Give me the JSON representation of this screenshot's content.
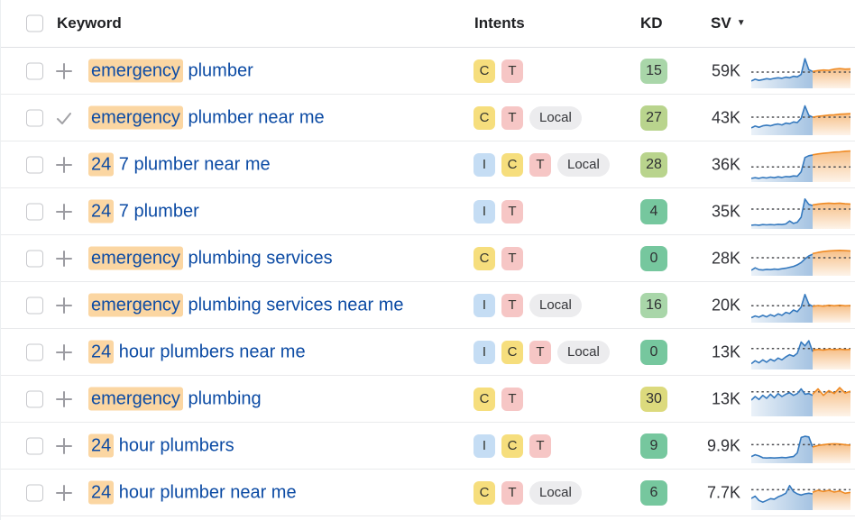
{
  "header": {
    "keyword_label": "Keyword",
    "intents_label": "Intents",
    "kd_label": "KD",
    "sv_label": "SV",
    "sv_sort_arrow": "▼"
  },
  "colors": {
    "link": "#0c4ba4",
    "keyword_highlight": "#fbd6a2",
    "intent_I": "#c5ddf4",
    "intent_C": "#f6de7d",
    "intent_T": "#f6c6c5",
    "intent_Local": "#ececee",
    "kd_green": "#76c79e",
    "kd_light_green": "#a9d6a9",
    "kd_yellow_green": "#b9d48d",
    "kd_yellow": "#dcda7d",
    "spark_history_line": "#3579be",
    "spark_forecast_line": "#ef8b25",
    "spark_dash": "#4d4e52"
  },
  "rows": [
    {
      "kw_highlight": "emergency",
      "kw_rest": " plumber",
      "icon": "plus",
      "intents": [
        "C",
        "T"
      ],
      "kd": "15",
      "kd_level": "light_green",
      "sv": "59K",
      "spark": {
        "dash": 0.5,
        "blue": [
          0.2,
          0.26,
          0.22,
          0.25,
          0.28,
          0.26,
          0.29,
          0.31,
          0.29,
          0.33,
          0.31,
          0.36,
          0.34,
          0.42,
          0.95,
          0.58,
          0.52
        ],
        "orange": [
          0.52,
          0.55,
          0.57,
          0.56,
          0.6,
          0.62,
          0.6,
          0.61
        ]
      }
    },
    {
      "kw_highlight": "emergency",
      "kw_rest": " plumber near me",
      "icon": "check",
      "intents": [
        "C",
        "T",
        "Local"
      ],
      "kd": "27",
      "kd_level": "yellow_green",
      "sv": "43K",
      "spark": {
        "dash": 0.56,
        "blue": [
          0.2,
          0.26,
          0.22,
          0.27,
          0.29,
          0.27,
          0.31,
          0.33,
          0.3,
          0.36,
          0.34,
          0.4,
          0.38,
          0.52,
          0.94,
          0.62,
          0.56
        ],
        "orange": [
          0.56,
          0.59,
          0.61,
          0.63,
          0.64,
          0.66,
          0.67,
          0.68
        ]
      }
    },
    {
      "kw_highlight": "24",
      "kw_rest": " 7 plumber near me",
      "icon": "plus",
      "intents": [
        "I",
        "C",
        "T",
        "Local"
      ],
      "kd": "28",
      "kd_level": "yellow_green",
      "sv": "36K",
      "spark": {
        "dash": 0.46,
        "blue": [
          0.08,
          0.1,
          0.08,
          0.11,
          0.09,
          0.12,
          0.1,
          0.13,
          0.11,
          0.14,
          0.13,
          0.16,
          0.15,
          0.3,
          0.78,
          0.84,
          0.86
        ],
        "orange": [
          0.87,
          0.9,
          0.92,
          0.94,
          0.96,
          0.97,
          0.99,
          1.0
        ]
      }
    },
    {
      "kw_highlight": "24",
      "kw_rest": " 7 plumber",
      "icon": "plus",
      "intents": [
        "I",
        "T"
      ],
      "kd": "4",
      "kd_level": "green",
      "sv": "35K",
      "spark": {
        "dash": 0.62,
        "blue": [
          0.08,
          0.09,
          0.08,
          0.1,
          0.09,
          0.1,
          0.09,
          0.11,
          0.1,
          0.12,
          0.22,
          0.14,
          0.18,
          0.35,
          0.96,
          0.78,
          0.74
        ],
        "orange": [
          0.76,
          0.79,
          0.81,
          0.82,
          0.81,
          0.82,
          0.8,
          0.79
        ]
      }
    },
    {
      "kw_highlight": "emergency",
      "kw_rest": " plumbing services",
      "icon": "plus",
      "intents": [
        "C",
        "T"
      ],
      "kd": "0",
      "kd_level": "green",
      "sv": "28K",
      "spark": {
        "dash": 0.56,
        "blue": [
          0.14,
          0.22,
          0.16,
          0.15,
          0.17,
          0.16,
          0.18,
          0.17,
          0.19,
          0.21,
          0.24,
          0.27,
          0.32,
          0.4,
          0.52,
          0.62,
          0.68
        ],
        "orange": [
          0.7,
          0.74,
          0.77,
          0.79,
          0.8,
          0.81,
          0.8,
          0.79
        ]
      }
    },
    {
      "kw_highlight": "emergency",
      "kw_rest": " plumbing services near me",
      "icon": "plus",
      "intents": [
        "I",
        "T",
        "Local"
      ],
      "kd": "16",
      "kd_level": "light_green",
      "sv": "20K",
      "spark": {
        "dash": 0.52,
        "blue": [
          0.12,
          0.18,
          0.14,
          0.2,
          0.15,
          0.22,
          0.17,
          0.25,
          0.2,
          0.3,
          0.26,
          0.38,
          0.32,
          0.48,
          0.9,
          0.58,
          0.5
        ],
        "orange": [
          0.5,
          0.53,
          0.51,
          0.54,
          0.52,
          0.54,
          0.52,
          0.53
        ]
      }
    },
    {
      "kw_highlight": "24",
      "kw_rest": " hour plumbers near me",
      "icon": "plus",
      "intents": [
        "I",
        "C",
        "T",
        "Local"
      ],
      "kd": "0",
      "kd_level": "green",
      "sv": "13K",
      "spark": {
        "dash": 0.66,
        "blue": [
          0.15,
          0.25,
          0.18,
          0.28,
          0.2,
          0.3,
          0.24,
          0.34,
          0.28,
          0.38,
          0.45,
          0.4,
          0.5,
          0.88,
          0.75,
          0.92,
          0.55
        ],
        "orange": [
          0.6,
          0.63,
          0.61,
          0.64,
          0.62,
          0.64,
          0.62,
          0.63
        ]
      }
    },
    {
      "kw_highlight": "emergency",
      "kw_rest": " plumbing",
      "icon": "plus",
      "intents": [
        "C",
        "T"
      ],
      "kd": "30",
      "kd_level": "yellow",
      "sv": "13K",
      "spark": {
        "dash": 0.78,
        "blue": [
          0.5,
          0.62,
          0.52,
          0.66,
          0.56,
          0.7,
          0.58,
          0.72,
          0.62,
          0.7,
          0.75,
          0.66,
          0.72,
          0.88,
          0.7,
          0.72,
          0.66
        ],
        "orange": [
          0.7,
          0.88,
          0.66,
          0.82,
          0.72,
          0.92,
          0.74,
          0.8
        ]
      }
    },
    {
      "kw_highlight": "24",
      "kw_rest": " hour plumbers",
      "icon": "plus",
      "intents": [
        "I",
        "C",
        "T"
      ],
      "kd": "9",
      "kd_level": "green",
      "sv": "9.9K",
      "spark": {
        "dash": 0.58,
        "blue": [
          0.18,
          0.24,
          0.2,
          0.14,
          0.13,
          0.14,
          0.13,
          0.14,
          0.15,
          0.14,
          0.16,
          0.18,
          0.3,
          0.82,
          0.86,
          0.84,
          0.5
        ],
        "orange": [
          0.5,
          0.55,
          0.58,
          0.6,
          0.61,
          0.6,
          0.58,
          0.56
        ]
      }
    },
    {
      "kw_highlight": "24",
      "kw_rest": " hour plumber near me",
      "icon": "plus",
      "intents": [
        "C",
        "T",
        "Local"
      ],
      "kd": "6",
      "kd_level": "green",
      "sv": "7.7K",
      "spark": {
        "dash": 0.64,
        "blue": [
          0.35,
          0.42,
          0.28,
          0.22,
          0.28,
          0.34,
          0.32,
          0.4,
          0.45,
          0.52,
          0.78,
          0.58,
          0.5,
          0.46,
          0.5,
          0.52,
          0.5
        ],
        "orange": [
          0.55,
          0.62,
          0.58,
          0.62,
          0.56,
          0.6,
          0.52,
          0.55
        ]
      }
    }
  ]
}
